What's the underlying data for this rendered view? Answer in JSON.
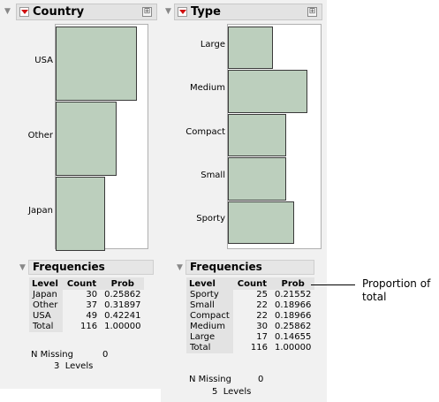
{
  "country": {
    "title": "Country",
    "bars": [
      {
        "label": "USA",
        "prob": 0.42241
      },
      {
        "label": "Other",
        "prob": 0.31897
      },
      {
        "label": "Japan",
        "prob": 0.25862
      }
    ],
    "frequencies": {
      "title": "Frequencies",
      "columns": [
        "Level",
        "Count",
        "Prob"
      ],
      "rows": [
        [
          "Japan",
          "30",
          "0.25862"
        ],
        [
          "Other",
          "37",
          "0.31897"
        ],
        [
          "USA",
          "49",
          "0.42241"
        ],
        [
          "Total",
          "116",
          "1.00000"
        ]
      ],
      "n_missing_label": "N Missing",
      "n_missing_value": "0",
      "levels_text": "3  Levels"
    }
  },
  "type": {
    "title": "Type",
    "bars": [
      {
        "label": "Large",
        "prob": 0.14655
      },
      {
        "label": "Medium",
        "prob": 0.25862
      },
      {
        "label": "Compact",
        "prob": 0.18966
      },
      {
        "label": "Small",
        "prob": 0.18966
      },
      {
        "label": "Sporty",
        "prob": 0.21552
      }
    ],
    "frequencies": {
      "title": "Frequencies",
      "columns": [
        "Level",
        "Count",
        "Prob"
      ],
      "rows": [
        [
          "Sporty",
          "25",
          "0.21552"
        ],
        [
          "Small",
          "22",
          "0.18966"
        ],
        [
          "Compact",
          "22",
          "0.18966"
        ],
        [
          "Medium",
          "30",
          "0.25862"
        ],
        [
          "Large",
          "17",
          "0.14655"
        ],
        [
          "Total",
          "116",
          "1.00000"
        ]
      ],
      "n_missing_label": "N Missing",
      "n_missing_value": "0",
      "levels_text": "5  Levels"
    }
  },
  "annotation": {
    "line1": "Proportion of",
    "line2": "total"
  },
  "colors": {
    "bar_fill": "#bccfbd",
    "red_triangle": "#d01010"
  }
}
